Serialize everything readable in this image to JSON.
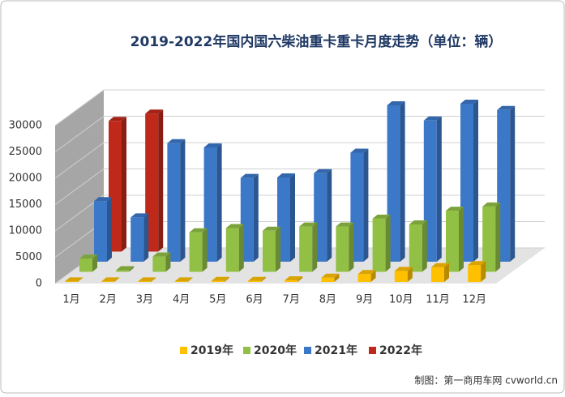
{
  "chart_data": {
    "type": "bar3d",
    "title": "2019-2022年国内国六柴油重卡重卡月度走势（单位：辆）",
    "categories": [
      "1月",
      "2月",
      "3月",
      "4月",
      "5月",
      "6月",
      "7月",
      "8月",
      "9月",
      "10月",
      "11月",
      "12月"
    ],
    "series": [
      {
        "name": "2019年",
        "color": "#ffc000",
        "values": [
          100,
          100,
          100,
          100,
          200,
          200,
          300,
          800,
          1500,
          2100,
          2800,
          3200
        ]
      },
      {
        "name": "2020年",
        "color": "#92c045",
        "values": [
          2500,
          300,
          2900,
          7500,
          8300,
          7800,
          8600,
          8600,
          10100,
          9000,
          11600,
          12400
        ]
      },
      {
        "name": "2021年",
        "color": "#3c78c8",
        "values": [
          11500,
          8400,
          22500,
          21700,
          15900,
          16000,
          16800,
          20700,
          29700,
          26800,
          30000,
          28800
        ]
      },
      {
        "name": "2022年",
        "color": "#c0281a",
        "values": [
          24800,
          26200,
          null,
          null,
          null,
          null,
          null,
          null,
          null,
          null,
          null,
          null
        ]
      }
    ],
    "ylim": [
      0,
      30000
    ],
    "yticks": [
      0,
      5000,
      10000,
      15000,
      20000,
      25000,
      30000
    ],
    "grid": true,
    "legend": "bottom",
    "source": "制图：第一商用车网 cvworld.cn"
  }
}
